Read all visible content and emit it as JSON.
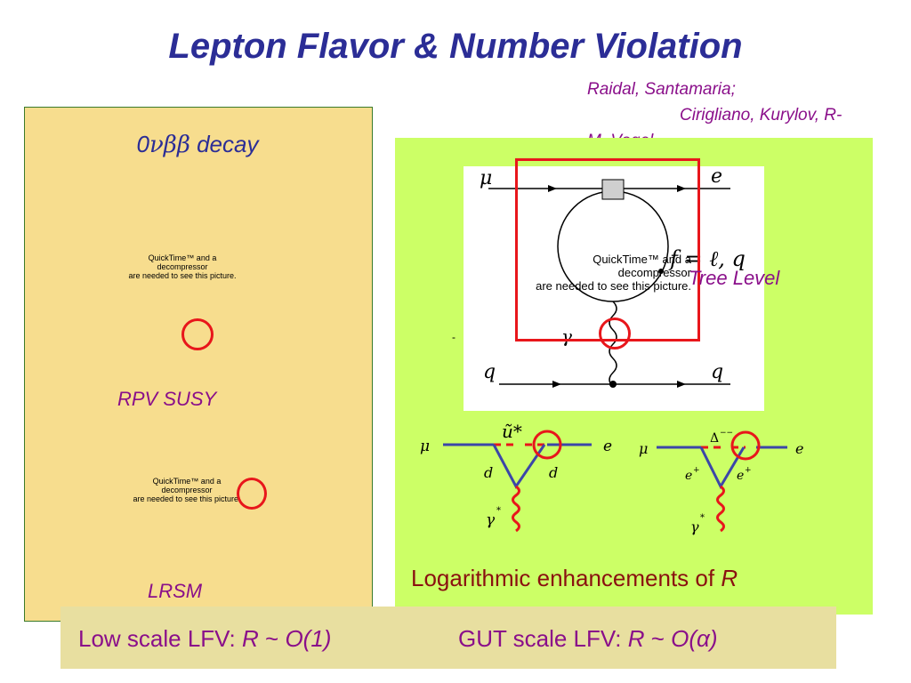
{
  "slide": {
    "title": "Lepton Flavor & Number Violation",
    "authors_line1": "Raidal, Santamaria;",
    "authors_line2": "Cirigliano, Kurylov, R-",
    "authors_line3": "M, Vogel"
  },
  "left_panel": {
    "heading_prefix": "0",
    "heading_symbols": "νββ",
    "heading_suffix": " decay",
    "placeholder_1": "QuickTime™ and a\ndecompressor\nare needed to see this picture.",
    "label_1": "RPV SUSY",
    "placeholder_2": "QuickTime™ and a\ndecompressor\nare needed to see this picture.",
    "label_2": "LRSM"
  },
  "right_panel": {
    "placeholder": "QuickTime™ and a\ndecompressor\nare needed to see this picture.",
    "tree_level": "Tree Level",
    "dash": "-",
    "loop_diagram": {
      "mu": "μ",
      "e": "e",
      "f_label": "f = ℓ, q",
      "gamma": "γ",
      "q_left": "q",
      "q_right": "q"
    },
    "diagram_a": {
      "mu": "μ",
      "e": "e",
      "u_star": "ũ*",
      "d_left": "d",
      "d_right": "d",
      "gamma": "γ",
      "gamma_sup": "*"
    },
    "diagram_b": {
      "mu": "μ",
      "e": "e",
      "delta": "Δ",
      "delta_sup": "−−",
      "e_plus_l": "e",
      "e_plus_r": "e",
      "plus": "+",
      "gamma": "γ",
      "gamma_sup": "*"
    },
    "log_text": "Logarithmic enhancements of ",
    "log_R": "R"
  },
  "bottom": {
    "low_prefix": "Low scale LFV: ",
    "low_R": "R",
    "low_mid": " ~ ",
    "low_O": "O(1)",
    "gut_prefix": "GUT scale LFV: ",
    "gut_R": "R",
    "gut_mid": " ~ ",
    "gut_O": "O(α)"
  },
  "colors": {
    "title": "#2b2d96",
    "accent_purple": "#8a0f8a",
    "marker_red": "#e8161b",
    "left_bg": "#f7dd8e",
    "right_bg": "#ccff66",
    "bottom_bg": "#e8dfa0",
    "diagram_blue": "#3b46a8"
  }
}
